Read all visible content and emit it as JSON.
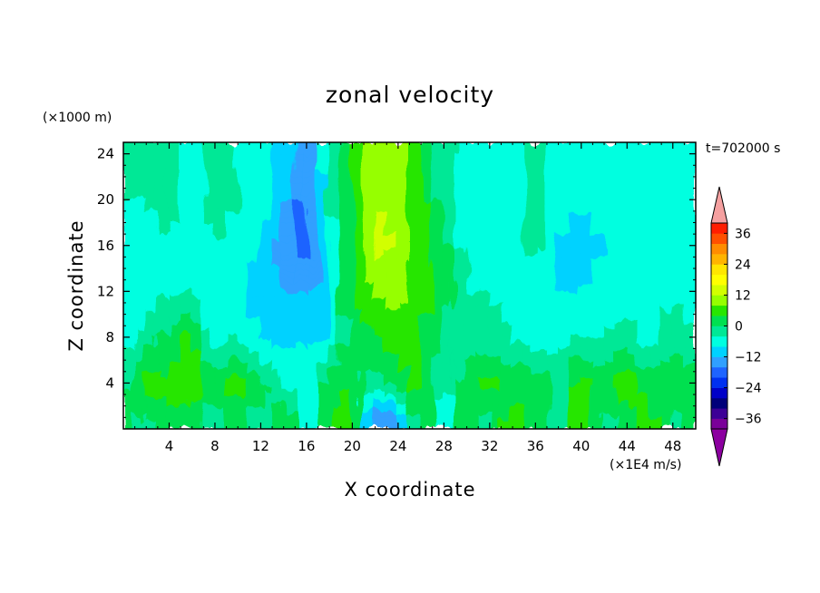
{
  "chart_data": {
    "type": "heatmap",
    "title": "zonal velocity",
    "xlabel": "X coordinate",
    "ylabel": "Z coordinate",
    "x_unit_label": "(×1E4 m/s)",
    "y_unit_label": "(×1000 m)",
    "time_label": "t=702000 s",
    "xlim": [
      0,
      50
    ],
    "ylim": [
      0,
      25
    ],
    "x_ticks": [
      4,
      8,
      12,
      16,
      20,
      24,
      28,
      32,
      36,
      40,
      44,
      48
    ],
    "y_ticks": [
      4,
      8,
      12,
      16,
      20,
      24
    ],
    "colorbar": {
      "min": -40,
      "max": 40,
      "step": 4,
      "tick_labels": [
        36,
        24,
        12,
        0,
        -12,
        -24,
        -36
      ],
      "colors": [
        "#7a0099",
        "#3c0096",
        "#00007a",
        "#0000c8",
        "#0030f0",
        "#1e64ff",
        "#30a0ff",
        "#00d2ff",
        "#00ffe0",
        "#00e896",
        "#00e050",
        "#28e600",
        "#96ff00",
        "#d2ff00",
        "#ffff00",
        "#ffe600",
        "#ffb400",
        "#ff8c00",
        "#ff5000",
        "#ff1e00",
        "#f0a0a0"
      ],
      "under_color": "#8c00a0",
      "over_color": "#f5a0a0"
    },
    "columns_x": [
      0,
      2,
      4,
      6,
      8,
      10,
      12,
      14,
      16,
      18,
      20,
      22,
      24,
      26,
      28,
      30,
      32,
      34,
      36,
      38,
      40,
      42,
      44,
      46,
      48,
      50
    ],
    "profile_z": [
      25,
      20,
      16,
      12,
      8,
      4,
      1
    ],
    "profiles": [
      [
        -4,
        -4,
        -8,
        -8,
        -6,
        -4,
        4
      ],
      [
        -4,
        -4,
        -6,
        -6,
        -2,
        6,
        -2
      ],
      [
        -2,
        -2,
        -4,
        -4,
        2,
        4,
        4
      ],
      [
        -6,
        -6,
        -8,
        -4,
        6,
        8,
        2
      ],
      [
        -2,
        -2,
        -4,
        -8,
        -6,
        2,
        -4
      ],
      [
        -4,
        -4,
        -6,
        -6,
        -4,
        6,
        4
      ],
      [
        -6,
        -6,
        -8,
        -10,
        -8,
        2,
        -4
      ],
      [
        -10,
        -10,
        -14,
        -12,
        -10,
        -4,
        4
      ],
      [
        -16,
        -18,
        -18,
        -12,
        -8,
        -6,
        -10
      ],
      [
        -4,
        -6,
        -10,
        -10,
        -8,
        2,
        4
      ],
      [
        4,
        6,
        6,
        4,
        2,
        4,
        6
      ],
      [
        10,
        12,
        14,
        8,
        2,
        -2,
        -14
      ],
      [
        10,
        10,
        12,
        10,
        6,
        2,
        -16
      ],
      [
        4,
        6,
        6,
        6,
        4,
        6,
        4
      ],
      [
        -2,
        -2,
        2,
        2,
        0,
        -4,
        -10
      ],
      [
        -6,
        -6,
        -6,
        -4,
        -4,
        2,
        4
      ],
      [
        -4,
        -4,
        -4,
        -4,
        -2,
        6,
        -2
      ],
      [
        -6,
        -6,
        -8,
        -6,
        -4,
        2,
        6
      ],
      [
        -2,
        -2,
        -2,
        -6,
        -6,
        4,
        2
      ],
      [
        -6,
        -6,
        -8,
        -8,
        -6,
        -2,
        -4
      ],
      [
        -8,
        -8,
        -10,
        -8,
        -4,
        6,
        8
      ],
      [
        -6,
        -6,
        -8,
        -6,
        -4,
        2,
        -2
      ],
      [
        -6,
        -6,
        -8,
        -6,
        -2,
        8,
        2
      ],
      [
        -4,
        -4,
        -6,
        -6,
        -6,
        2,
        6
      ],
      [
        -6,
        -6,
        -6,
        -4,
        -2,
        4,
        -2
      ],
      [
        -4,
        -4,
        -6,
        -6,
        -4,
        2,
        4
      ]
    ]
  }
}
